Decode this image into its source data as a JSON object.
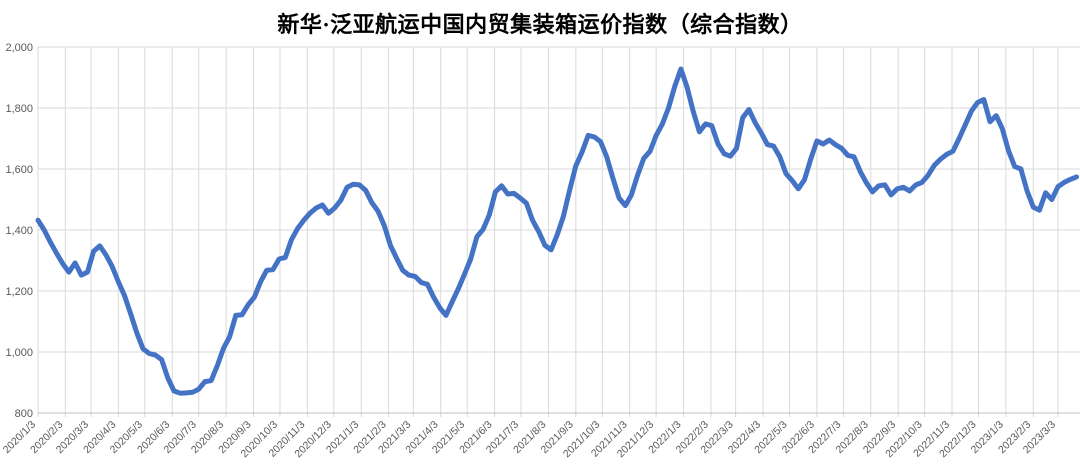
{
  "title": "新华·泛亚航运中国内贸集装箱运价指数（综合指数）",
  "chart_data": {
    "type": "line",
    "title": "新华·泛亚航运中国内贸集装箱运价指数（综合指数）",
    "legend": "none",
    "grid": true,
    "line_color": "#4472C4",
    "gridline_color": "#D9D9D9",
    "axis_color": "#BFBFBF",
    "tick_label_color": "#595959",
    "title_color": "#000000",
    "ylim": [
      800,
      2000
    ],
    "y_ticks": [
      800,
      1000,
      1200,
      1400,
      1600,
      1800,
      2000
    ],
    "y_tick_labels": [
      "800",
      "1,000",
      "1,200",
      "1,400",
      "1,600",
      "1,800",
      "2,000"
    ],
    "x_interval": "weekly",
    "x_start_date": "2020/1/3",
    "x_tick_labels": [
      "2020/1/3",
      "2020/2/3",
      "2020/3/3",
      "2020/4/3",
      "2020/5/3",
      "2020/6/3",
      "2020/7/3",
      "2020/8/3",
      "2020/9/3",
      "2020/10/3",
      "2020/11/3",
      "2020/12/3",
      "2021/1/3",
      "2021/2/3",
      "2021/3/3",
      "2021/4/3",
      "2021/5/3",
      "2021/6/3",
      "2021/7/3",
      "2021/8/3",
      "2021/9/3",
      "2021/10/3",
      "2021/11/3",
      "2021/12/3",
      "2022/1/3",
      "2022/2/3",
      "2022/3/3",
      "2022/4/3",
      "2022/5/3",
      "2022/6/3",
      "2022/7/3",
      "2022/8/3",
      "2022/9/3",
      "2022/10/3",
      "2022/11/3",
      "2022/12/3",
      "2023/1/3",
      "2023/2/3",
      "2023/3/3"
    ],
    "values": [
      1432,
      1400,
      1360,
      1324,
      1290,
      1262,
      1292,
      1252,
      1262,
      1330,
      1348,
      1318,
      1280,
      1230,
      1185,
      1125,
      1062,
      1010,
      995,
      990,
      975,
      915,
      872,
      865,
      866,
      868,
      878,
      903,
      906,
      955,
      1012,
      1050,
      1120,
      1122,
      1155,
      1180,
      1230,
      1268,
      1270,
      1305,
      1310,
      1368,
      1405,
      1432,
      1455,
      1472,
      1482,
      1455,
      1472,
      1498,
      1540,
      1550,
      1548,
      1530,
      1490,
      1462,
      1415,
      1350,
      1308,
      1268,
      1252,
      1248,
      1228,
      1222,
      1180,
      1145,
      1120,
      1165,
      1208,
      1255,
      1305,
      1378,
      1402,
      1450,
      1525,
      1545,
      1518,
      1520,
      1505,
      1488,
      1432,
      1395,
      1350,
      1335,
      1385,
      1445,
      1530,
      1610,
      1655,
      1710,
      1705,
      1690,
      1640,
      1570,
      1505,
      1480,
      1515,
      1580,
      1635,
      1658,
      1710,
      1748,
      1800,
      1870,
      1928,
      1868,
      1788,
      1722,
      1748,
      1742,
      1682,
      1650,
      1642,
      1668,
      1768,
      1795,
      1752,
      1718,
      1680,
      1675,
      1640,
      1585,
      1562,
      1535,
      1565,
      1632,
      1692,
      1682,
      1695,
      1680,
      1668,
      1645,
      1640,
      1592,
      1555,
      1525,
      1545,
      1548,
      1515,
      1535,
      1540,
      1528,
      1548,
      1556,
      1580,
      1612,
      1632,
      1648,
      1658,
      1700,
      1745,
      1790,
      1818,
      1828,
      1755,
      1775,
      1732,
      1660,
      1608,
      1600,
      1528,
      1475,
      1465,
      1522,
      1500,
      1542,
      1556,
      1566,
      1574
    ]
  }
}
